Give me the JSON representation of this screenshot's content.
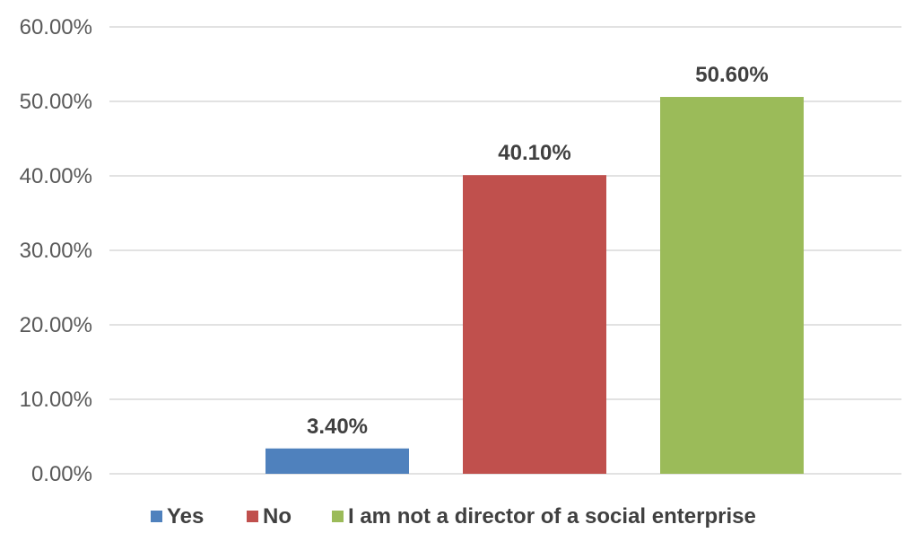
{
  "chart_data": {
    "type": "bar",
    "categories": [
      "Yes",
      "No",
      "I am not a director of a social enterprise"
    ],
    "values": [
      3.4,
      40.1,
      50.6
    ],
    "data_labels": [
      "3.40%",
      "40.10%",
      "50.60%"
    ],
    "colors": [
      "#4f81bd",
      "#c0504d",
      "#9bbb59"
    ],
    "ylim": [
      0,
      60
    ],
    "yticks": [
      0,
      10,
      20,
      30,
      40,
      50,
      60
    ],
    "ytick_labels": [
      "0.00%",
      "10.00%",
      "20.00%",
      "30.00%",
      "40.00%",
      "50.00%",
      "60.00%"
    ],
    "grid": true,
    "legend": {
      "position": "bottom",
      "entries": [
        "Yes",
        "No",
        "I am not a director of a social enterprise"
      ]
    }
  }
}
